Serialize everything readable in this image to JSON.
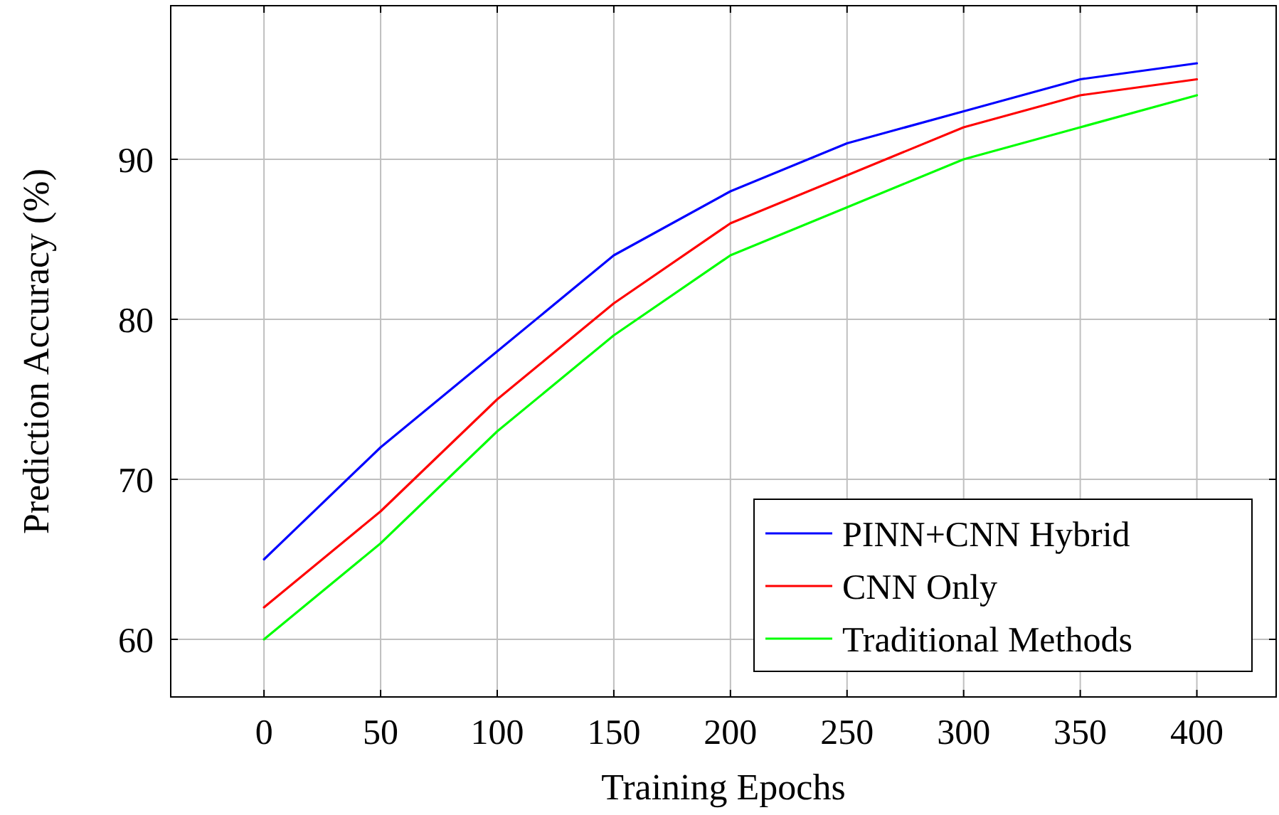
{
  "chart_data": {
    "type": "line",
    "xlabel": "Training Epochs",
    "ylabel": "Prediction Accuracy (%)",
    "x": [
      0,
      50,
      100,
      150,
      200,
      250,
      300,
      350,
      400
    ],
    "series": [
      {
        "name": "PINN+CNN Hybrid",
        "color": "#0000ff",
        "values": [
          65,
          72,
          78,
          84,
          88,
          91,
          93,
          95,
          96
        ]
      },
      {
        "name": "CNN Only",
        "color": "#ff0000",
        "values": [
          62,
          68,
          75,
          81,
          86,
          89,
          92,
          94,
          95
        ]
      },
      {
        "name": "Traditional Methods",
        "color": "#00ff00",
        "values": [
          60,
          66,
          73,
          79,
          84,
          87,
          90,
          92,
          94
        ]
      }
    ],
    "xlim": [
      -40,
      434
    ],
    "ylim": [
      56.4,
      99.6
    ],
    "xticks": [
      0,
      50,
      100,
      150,
      200,
      250,
      300,
      350,
      400
    ],
    "yticks": [
      60,
      70,
      80,
      90
    ],
    "grid": true,
    "legend": "bottom right",
    "marker": "none",
    "line_style": "solid"
  }
}
